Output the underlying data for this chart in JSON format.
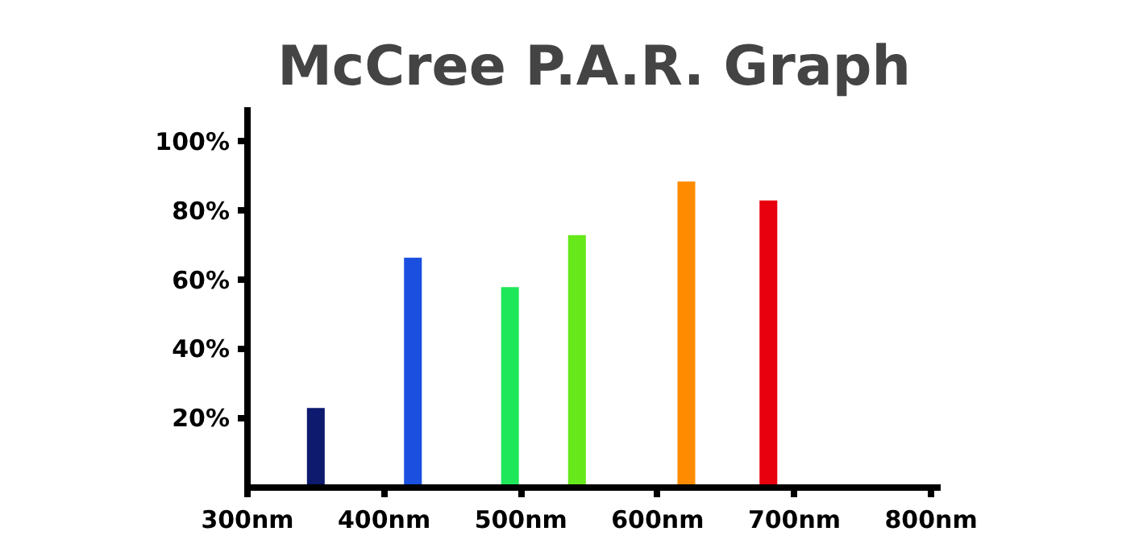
{
  "chart_data": {
    "type": "bar",
    "title": "McCree P.A.R. Graph",
    "x": [
      350,
      421,
      492,
      541,
      621,
      681
    ],
    "values": [
      23,
      66.5,
      58,
      73,
      88.5,
      83
    ],
    "colors": [
      "#0d1a6e",
      "#1a4fe0",
      "#1ee85a",
      "#66e81a",
      "#ff8c00",
      "#e8000e"
    ],
    "xlim": [
      300,
      807
    ],
    "ylim": [
      0,
      110
    ],
    "xticks": [
      {
        "value": 300,
        "label": "300nm"
      },
      {
        "value": 400,
        "label": "400nm"
      },
      {
        "value": 500,
        "label": "500nm"
      },
      {
        "value": 600,
        "label": "600nm"
      },
      {
        "value": 700,
        "label": "700nm"
      },
      {
        "value": 800,
        "label": "800nm"
      }
    ],
    "yticks": [
      {
        "value": 20,
        "label": "20%"
      },
      {
        "value": 40,
        "label": "40%"
      },
      {
        "value": 60,
        "label": "60%"
      },
      {
        "value": 80,
        "label": "80%"
      },
      {
        "value": 100,
        "label": "100%"
      }
    ],
    "grid": false
  }
}
